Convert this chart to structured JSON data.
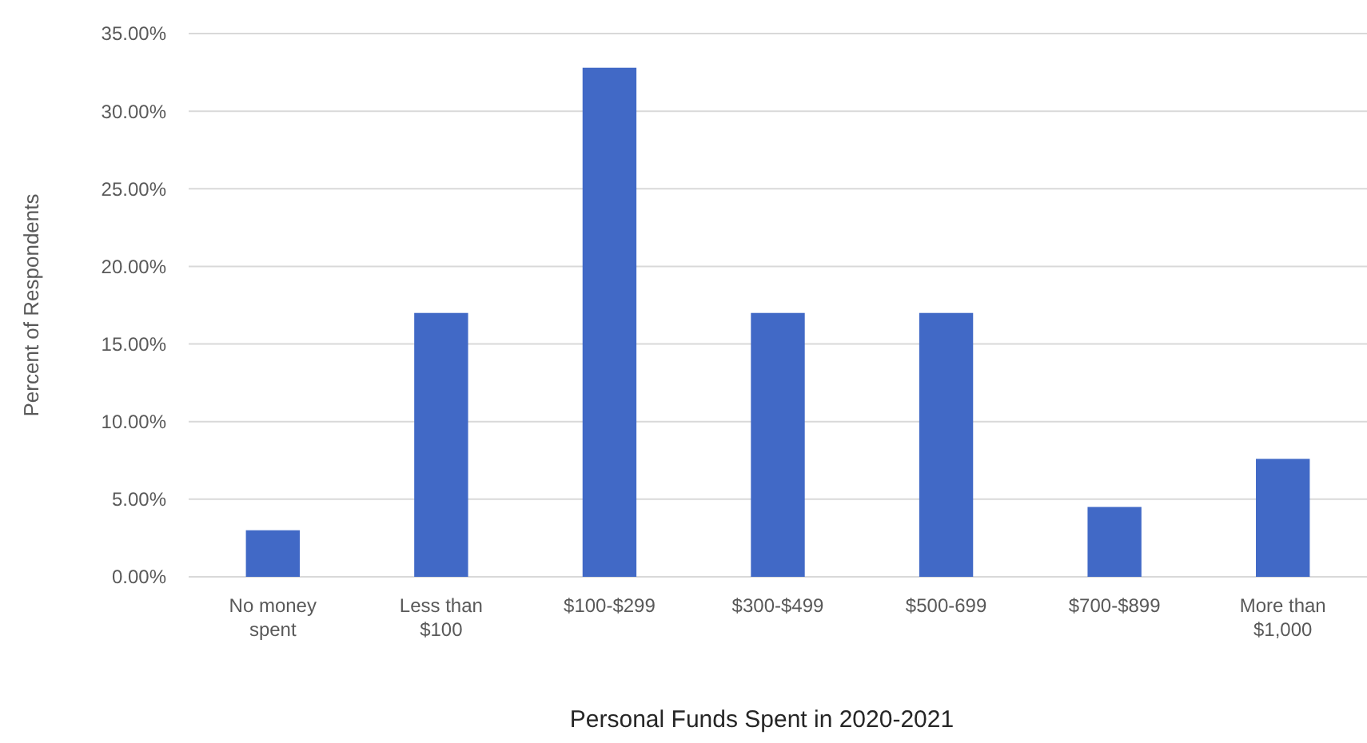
{
  "chart_data": {
    "type": "bar",
    "xlabel": "Personal Funds Spent in 2020-2021",
    "ylabel": "Percent of Respondents",
    "categories": [
      "No money spent",
      "Less than $100",
      "$100-$299",
      "$300-$499",
      "$500-699",
      "$700-$899",
      "More than $1,000"
    ],
    "values": [
      3.0,
      17.0,
      32.8,
      17.0,
      17.0,
      4.5,
      7.6
    ],
    "color": "#4169c6",
    "ylim": [
      0,
      35
    ],
    "yticks": [
      {
        "value": 0,
        "label": "0.00%"
      },
      {
        "value": 5,
        "label": "5.00%"
      },
      {
        "value": 10,
        "label": "10.00%"
      },
      {
        "value": 15,
        "label": "15.00%"
      },
      {
        "value": 20,
        "label": "20.00%"
      },
      {
        "value": 25,
        "label": "25.00%"
      },
      {
        "value": 30,
        "label": "30.00%"
      },
      {
        "value": 35,
        "label": "35.00%"
      }
    ],
    "grid": "y"
  }
}
